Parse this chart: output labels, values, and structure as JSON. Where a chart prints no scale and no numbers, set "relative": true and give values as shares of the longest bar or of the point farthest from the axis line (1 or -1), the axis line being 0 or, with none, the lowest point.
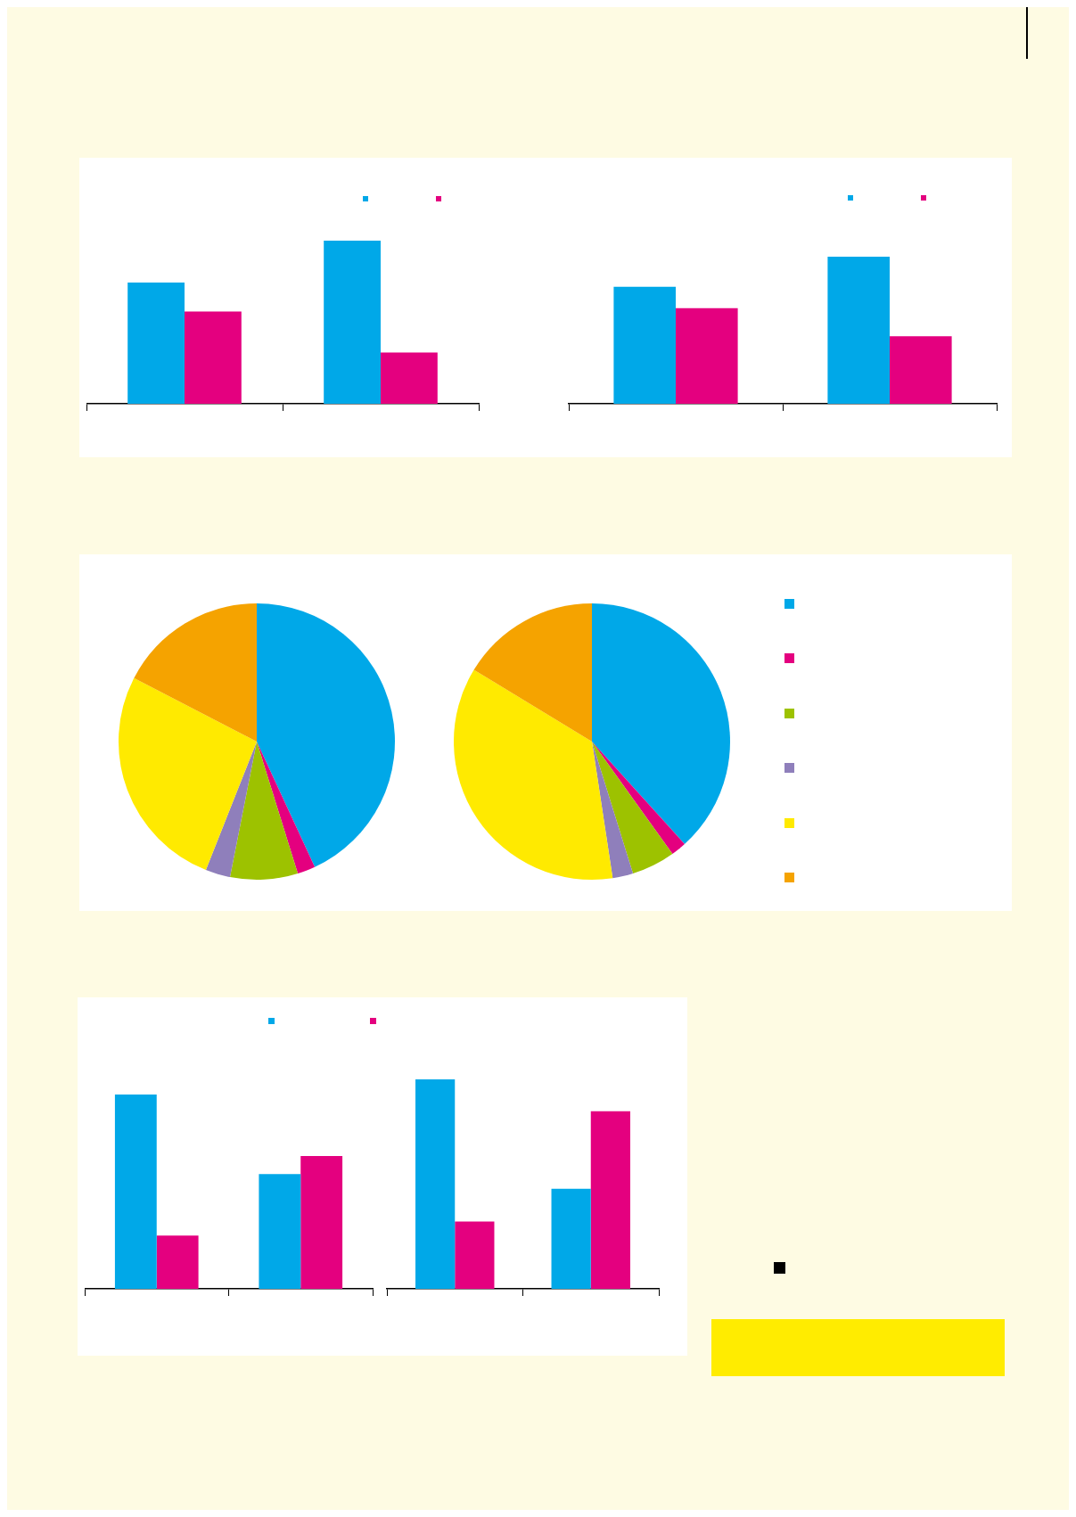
{
  "chart_data": [
    {
      "type": "bar",
      "relative": true,
      "categories": [
        null,
        null
      ],
      "series": [
        {
          "color": "#00a8e8",
          "values": [
            0.743,
            1
          ]
        },
        {
          "color": "#e4007f",
          "values": [
            0.566,
            0.314
          ]
        }
      ]
    },
    {
      "type": "bar",
      "relative": true,
      "categories": [
        null,
        null
      ],
      "series": [
        {
          "color": "#00a8e8",
          "values": [
            0.796,
            1
          ]
        },
        {
          "color": "#e4007f",
          "values": [
            0.65,
            0.459
          ]
        }
      ]
    },
    {
      "type": "pie",
      "categories": [
        null,
        null,
        null,
        null,
        null,
        null
      ],
      "values": [
        43.1,
        2.1,
        7.9,
        2.9,
        26.6,
        17.4
      ],
      "colors": [
        "#00a8e8",
        "#e4007f",
        "#9dc200",
        "#8f7fbb",
        "#ffea00",
        "#f5a300"
      ]
    },
    {
      "type": "pie",
      "categories": [
        null,
        null,
        null,
        null,
        null,
        null
      ],
      "values": [
        38.3,
        1.8,
        5.1,
        2.4,
        36.1,
        16.3
      ],
      "colors": [
        "#00a8e8",
        "#e4007f",
        "#9dc200",
        "#8f7fbb",
        "#ffea00",
        "#f5a300"
      ]
    },
    {
      "type": "bar",
      "relative": true,
      "categories": [
        null,
        null
      ],
      "series": [
        {
          "color": "#00a8e8",
          "values": [
            1,
            0.591
          ]
        },
        {
          "color": "#e4007f",
          "values": [
            0.274,
            0.683
          ]
        }
      ]
    },
    {
      "type": "bar",
      "relative": true,
      "categories": [
        null,
        null
      ],
      "series": [
        {
          "color": "#00a8e8",
          "values": [
            1,
            0.478
          ]
        },
        {
          "color": "#e4007f",
          "values": [
            0.321,
            0.848
          ]
        }
      ]
    }
  ]
}
